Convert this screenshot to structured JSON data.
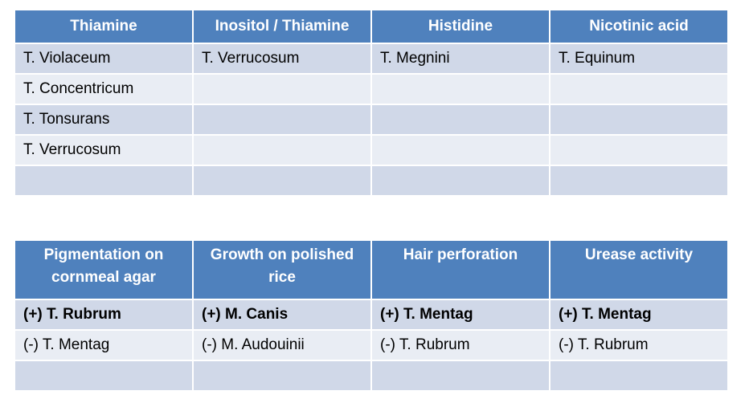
{
  "table1": {
    "headers": [
      "Thiamine",
      "Inositol / Thiamine",
      "Histidine",
      "Nicotinic acid"
    ],
    "rows": [
      [
        "T. Violaceum",
        "T. Verrucosum",
        "T. Megnini",
        "T. Equinum"
      ],
      [
        "T. Concentricum",
        "",
        "",
        ""
      ],
      [
        "T. Tonsurans",
        "",
        "",
        ""
      ],
      [
        "T. Verrucosum",
        "",
        "",
        ""
      ],
      [
        "",
        "",
        "",
        ""
      ]
    ]
  },
  "table2": {
    "headers": [
      "Pigmentation on cornmeal agar",
      "Growth on polished rice",
      "Hair perforation",
      "Urease activity"
    ],
    "rows": [
      [
        "(+) T. Rubrum",
        "(+) M. Canis",
        "(+) T. Mentag",
        "(+) T. Mentag"
      ],
      [
        "(-) T. Mentag",
        "(-) M. Audouinii",
        "(-) T. Rubrum",
        "(-) T. Rubrum"
      ],
      [
        "",
        "",
        "",
        ""
      ]
    ]
  }
}
